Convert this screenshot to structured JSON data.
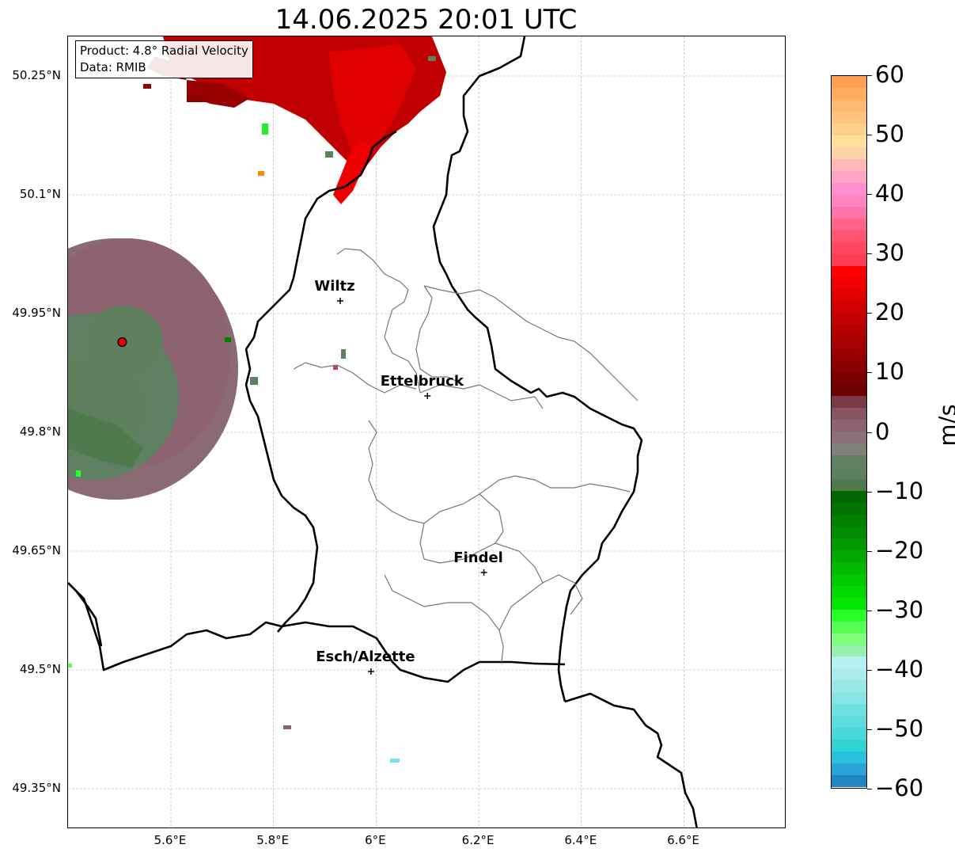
{
  "title": "14.06.2025 20:01 UTC",
  "info": {
    "product": "Product: 4.8° Radial Velocity",
    "source": "Data: RMIB"
  },
  "lat_ticks": [
    "50.25°N",
    "50.1°N",
    "49.95°N",
    "49.8°N",
    "49.65°N",
    "49.5°N",
    "49.35°N"
  ],
  "lon_ticks": [
    "5.6°E",
    "5.8°E",
    "6°E",
    "6.2°E",
    "6.4°E",
    "6.6°E"
  ],
  "cities": [
    {
      "name": "Wiltz",
      "lon": 5.93,
      "lat": 49.966
    },
    {
      "name": "Ettelbruck",
      "lon": 6.1,
      "lat": 49.846
    },
    {
      "name": "Findel",
      "lon": 6.21,
      "lat": 49.623
    },
    {
      "name": "Esch/Alzette",
      "lon": 5.99,
      "lat": 49.498
    }
  ],
  "radar_site": {
    "lon": 5.505,
    "lat": 49.914
  },
  "colorbar": {
    "label": "m/s",
    "ticks": [
      "60",
      "50",
      "40",
      "30",
      "20",
      "10",
      "0",
      "−10",
      "−20",
      "−30",
      "−40",
      "−50",
      "−60"
    ],
    "tick_values": [
      60,
      50,
      40,
      30,
      20,
      10,
      0,
      -10,
      -20,
      -30,
      -40,
      -50,
      -60
    ],
    "range": [
      -60,
      60
    ],
    "colors_top_to_bottom": [
      "#ff9f50",
      "#ffab60",
      "#ffb870",
      "#ffc27f",
      "#ffd08c",
      "#ffe19b",
      "#ffd3a8",
      "#ffb7b7",
      "#ffa6c4",
      "#ff8fd0",
      "#ff84c0",
      "#ff75a7",
      "#ff6389",
      "#ff5570",
      "#ff485f",
      "#ff3b56",
      "#ff0000",
      "#ee0000",
      "#e00000",
      "#d10000",
      "#c40000",
      "#b50000",
      "#a70000",
      "#980000",
      "#8a0000",
      "#7a0000",
      "#6d0000",
      "#7a3a44",
      "#875562",
      "#8d6271",
      "#8c7077",
      "#80807b",
      "#608064",
      "#5e805e",
      "#4e7a4e",
      "#006600",
      "#007300",
      "#008000",
      "#008c00",
      "#009a00",
      "#00a900",
      "#00b900",
      "#00c800",
      "#00d800",
      "#00e600",
      "#2aff2a",
      "#55ff55",
      "#7dff7d",
      "#98f0b0",
      "#b7f0f0",
      "#aaecec",
      "#98e8e8",
      "#86e4e4",
      "#6fe0e0",
      "#5cdcdc",
      "#48dada",
      "#30d6d6",
      "#28c2dc",
      "#2aa6d6",
      "#1f86c4"
    ]
  }
}
